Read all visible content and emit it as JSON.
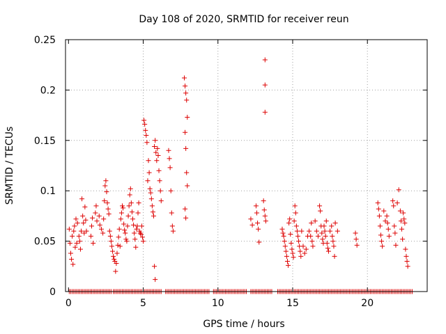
{
  "chart_data": {
    "type": "scatter",
    "title": "Day 108 of 2020, SRMTID for receiver reun",
    "xlabel": "GPS time / hours",
    "ylabel": "SRMTID / TECUs",
    "xlim": [
      -0.2,
      24
    ],
    "ylim": [
      0,
      0.25
    ],
    "x_ticks": [
      0,
      5,
      10,
      15,
      20
    ],
    "x_tick_labels": [
      "0",
      "5",
      "10",
      "15",
      "20"
    ],
    "y_ticks": [
      0,
      0.05,
      0.1,
      0.15,
      0.2,
      0.25
    ],
    "y_tick_labels": [
      "0",
      "0.05",
      "0.1",
      "0.15",
      "0.2",
      "0.25"
    ],
    "grid": true,
    "marker": "+",
    "color": "#dd0000",
    "series": [
      {
        "name": "SRMTID",
        "points": [
          [
            0.05,
            0.062
          ],
          [
            0.1,
            0.048
          ],
          [
            0.15,
            0.038
          ],
          [
            0.2,
            0.032
          ],
          [
            0.25,
            0.055
          ],
          [
            0.3,
            0.027
          ],
          [
            0.35,
            0.06
          ],
          [
            0.4,
            0.065
          ],
          [
            0.45,
            0.044
          ],
          [
            0.5,
            0.072
          ],
          [
            0.55,
            0.048
          ],
          [
            0.6,
            0.068
          ],
          [
            0.7,
            0.055
          ],
          [
            0.75,
            0.05
          ],
          [
            0.8,
            0.042
          ],
          [
            0.85,
            0.06
          ],
          [
            0.9,
            0.092
          ],
          [
            0.95,
            0.075
          ],
          [
            1.0,
            0.068
          ],
          [
            1.05,
            0.058
          ],
          [
            1.1,
            0.084
          ],
          [
            1.15,
            0.071
          ],
          [
            1.2,
            0.06
          ],
          [
            1.5,
            0.055
          ],
          [
            1.55,
            0.065
          ],
          [
            1.6,
            0.073
          ],
          [
            1.65,
            0.048
          ],
          [
            1.8,
            0.078
          ],
          [
            1.85,
            0.085
          ],
          [
            1.9,
            0.07
          ],
          [
            2.05,
            0.075
          ],
          [
            2.1,
            0.066
          ],
          [
            2.2,
            0.062
          ],
          [
            2.3,
            0.058
          ],
          [
            2.35,
            0.072
          ],
          [
            2.4,
            0.09
          ],
          [
            2.45,
            0.105
          ],
          [
            2.5,
            0.11
          ],
          [
            2.55,
            0.099
          ],
          [
            2.6,
            0.088
          ],
          [
            2.65,
            0.082
          ],
          [
            2.7,
            0.077
          ],
          [
            2.75,
            0.06
          ],
          [
            2.8,
            0.055
          ],
          [
            2.85,
            0.05
          ],
          [
            2.9,
            0.045
          ],
          [
            2.95,
            0.04
          ],
          [
            3.0,
            0.035
          ],
          [
            3.05,
            0.032
          ],
          [
            3.1,
            0.03
          ],
          [
            3.15,
            0.02
          ],
          [
            3.2,
            0.028
          ],
          [
            3.25,
            0.038
          ],
          [
            3.3,
            0.046
          ],
          [
            3.35,
            0.054
          ],
          [
            3.4,
            0.062
          ],
          [
            3.45,
            0.045
          ],
          [
            3.5,
            0.072
          ],
          [
            3.55,
            0.078
          ],
          [
            3.6,
            0.085
          ],
          [
            3.65,
            0.083
          ],
          [
            3.7,
            0.067
          ],
          [
            3.75,
            0.061
          ],
          [
            3.8,
            0.058
          ],
          [
            3.85,
            0.052
          ],
          [
            3.9,
            0.05
          ],
          [
            3.95,
            0.065
          ],
          [
            4.0,
            0.075
          ],
          [
            4.05,
            0.085
          ],
          [
            4.1,
            0.096
          ],
          [
            4.15,
            0.102
          ],
          [
            4.2,
            0.088
          ],
          [
            4.25,
            0.079
          ],
          [
            4.3,
            0.072
          ],
          [
            4.35,
            0.066
          ],
          [
            4.4,
            0.058
          ],
          [
            4.45,
            0.052
          ],
          [
            4.5,
            0.044
          ],
          [
            4.55,
            0.062
          ],
          [
            4.6,
            0.065
          ],
          [
            4.65,
            0.078
          ],
          [
            4.7,
            0.088
          ],
          [
            4.75,
            0.06
          ],
          [
            4.8,
            0.058
          ],
          [
            4.85,
            0.057
          ],
          [
            4.9,
            0.065
          ],
          [
            4.95,
            0.054
          ],
          [
            5.0,
            0.05
          ],
          [
            5.05,
            0.17
          ],
          [
            5.1,
            0.166
          ],
          [
            5.15,
            0.16
          ],
          [
            5.2,
            0.155
          ],
          [
            5.25,
            0.148
          ],
          [
            5.3,
            0.11
          ],
          [
            5.35,
            0.13
          ],
          [
            5.4,
            0.118
          ],
          [
            5.45,
            0.102
          ],
          [
            5.5,
            0.098
          ],
          [
            5.55,
            0.092
          ],
          [
            5.6,
            0.085
          ],
          [
            5.65,
            0.079
          ],
          [
            5.7,
            0.075
          ],
          [
            5.75,
            0.144
          ],
          [
            5.8,
            0.15
          ],
          [
            5.85,
            0.138
          ],
          [
            5.9,
            0.13
          ],
          [
            5.95,
            0.142
          ],
          [
            6.0,
            0.135
          ],
          [
            6.05,
            0.12
          ],
          [
            6.1,
            0.11
          ],
          [
            6.15,
            0.1
          ],
          [
            6.2,
            0.09
          ],
          [
            5.8,
            0.012
          ],
          [
            5.75,
            0.025
          ],
          [
            6.7,
            0.14
          ],
          [
            6.75,
            0.132
          ],
          [
            6.8,
            0.123
          ],
          [
            6.85,
            0.1
          ],
          [
            6.9,
            0.078
          ],
          [
            6.95,
            0.065
          ],
          [
            7.0,
            0.06
          ],
          [
            7.75,
            0.212
          ],
          [
            7.8,
            0.204
          ],
          [
            7.85,
            0.197
          ],
          [
            7.9,
            0.19
          ],
          [
            7.95,
            0.173
          ],
          [
            7.8,
            0.158
          ],
          [
            7.85,
            0.142
          ],
          [
            7.9,
            0.118
          ],
          [
            7.95,
            0.105
          ],
          [
            7.8,
            0.082
          ],
          [
            7.85,
            0.073
          ],
          [
            13.15,
            0.23
          ],
          [
            13.15,
            0.205
          ],
          [
            13.15,
            0.178
          ],
          [
            12.2,
            0.072
          ],
          [
            12.3,
            0.066
          ],
          [
            12.55,
            0.085
          ],
          [
            12.6,
            0.078
          ],
          [
            12.65,
            0.068
          ],
          [
            12.7,
            0.062
          ],
          [
            12.75,
            0.049
          ],
          [
            13.05,
            0.09
          ],
          [
            13.1,
            0.081
          ],
          [
            13.15,
            0.075
          ],
          [
            13.2,
            0.07
          ],
          [
            14.3,
            0.062
          ],
          [
            14.35,
            0.058
          ],
          [
            14.4,
            0.055
          ],
          [
            14.45,
            0.05
          ],
          [
            14.5,
            0.045
          ],
          [
            14.55,
            0.04
          ],
          [
            14.6,
            0.035
          ],
          [
            14.65,
            0.03
          ],
          [
            14.7,
            0.026
          ],
          [
            14.75,
            0.068
          ],
          [
            14.8,
            0.072
          ],
          [
            14.85,
            0.057
          ],
          [
            14.9,
            0.048
          ],
          [
            14.95,
            0.042
          ],
          [
            15.0,
            0.038
          ],
          [
            15.05,
            0.034
          ],
          [
            15.1,
            0.07
          ],
          [
            15.15,
            0.085
          ],
          [
            15.2,
            0.078
          ],
          [
            15.25,
            0.065
          ],
          [
            15.3,
            0.06
          ],
          [
            15.35,
            0.055
          ],
          [
            15.4,
            0.05
          ],
          [
            15.45,
            0.045
          ],
          [
            15.5,
            0.04
          ],
          [
            15.55,
            0.035
          ],
          [
            15.6,
            0.06
          ],
          [
            15.7,
            0.045
          ],
          [
            15.8,
            0.038
          ],
          [
            15.9,
            0.042
          ],
          [
            16.0,
            0.055
          ],
          [
            16.1,
            0.06
          ],
          [
            16.2,
            0.055
          ],
          [
            16.25,
            0.068
          ],
          [
            16.3,
            0.05
          ],
          [
            16.35,
            0.045
          ],
          [
            16.5,
            0.07
          ],
          [
            16.6,
            0.06
          ],
          [
            16.7,
            0.055
          ],
          [
            16.8,
            0.085
          ],
          [
            16.85,
            0.08
          ],
          [
            16.9,
            0.065
          ],
          [
            16.95,
            0.058
          ],
          [
            17.0,
            0.052
          ],
          [
            17.05,
            0.048
          ],
          [
            17.1,
            0.065
          ],
          [
            17.15,
            0.06
          ],
          [
            17.2,
            0.055
          ],
          [
            17.25,
            0.07
          ],
          [
            17.3,
            0.048
          ],
          [
            17.35,
            0.043
          ],
          [
            17.4,
            0.04
          ],
          [
            17.5,
            0.06
          ],
          [
            17.6,
            0.065
          ],
          [
            17.65,
            0.055
          ],
          [
            17.7,
            0.05
          ],
          [
            17.75,
            0.045
          ],
          [
            17.8,
            0.035
          ],
          [
            17.85,
            0.068
          ],
          [
            18.0,
            0.06
          ],
          [
            19.2,
            0.058
          ],
          [
            19.25,
            0.052
          ],
          [
            19.3,
            0.046
          ],
          [
            20.7,
            0.088
          ],
          [
            20.75,
            0.082
          ],
          [
            20.8,
            0.075
          ],
          [
            20.85,
            0.065
          ],
          [
            20.9,
            0.056
          ],
          [
            20.95,
            0.05
          ],
          [
            21.0,
            0.045
          ],
          [
            21.1,
            0.08
          ],
          [
            21.2,
            0.07
          ],
          [
            21.3,
            0.075
          ],
          [
            21.35,
            0.068
          ],
          [
            21.4,
            0.062
          ],
          [
            21.45,
            0.055
          ],
          [
            21.7,
            0.09
          ],
          [
            21.75,
            0.085
          ],
          [
            21.8,
            0.065
          ],
          [
            21.85,
            0.058
          ],
          [
            21.9,
            0.046
          ],
          [
            22.0,
            0.088
          ],
          [
            22.1,
            0.101
          ],
          [
            22.2,
            0.08
          ],
          [
            22.25,
            0.07
          ],
          [
            22.3,
            0.062
          ],
          [
            22.35,
            0.052
          ],
          [
            22.4,
            0.078
          ],
          [
            22.45,
            0.072
          ],
          [
            22.5,
            0.068
          ],
          [
            22.55,
            0.042
          ],
          [
            22.6,
            0.035
          ],
          [
            22.65,
            0.03
          ],
          [
            22.7,
            0.025
          ]
        ]
      }
    ],
    "zero_bands": [
      [
        0.05,
        2.9
      ],
      [
        3.0,
        6.2
      ],
      [
        6.5,
        9.4
      ],
      [
        9.7,
        11.9
      ],
      [
        12.2,
        13.6
      ],
      [
        14.0,
        23.0
      ]
    ]
  }
}
